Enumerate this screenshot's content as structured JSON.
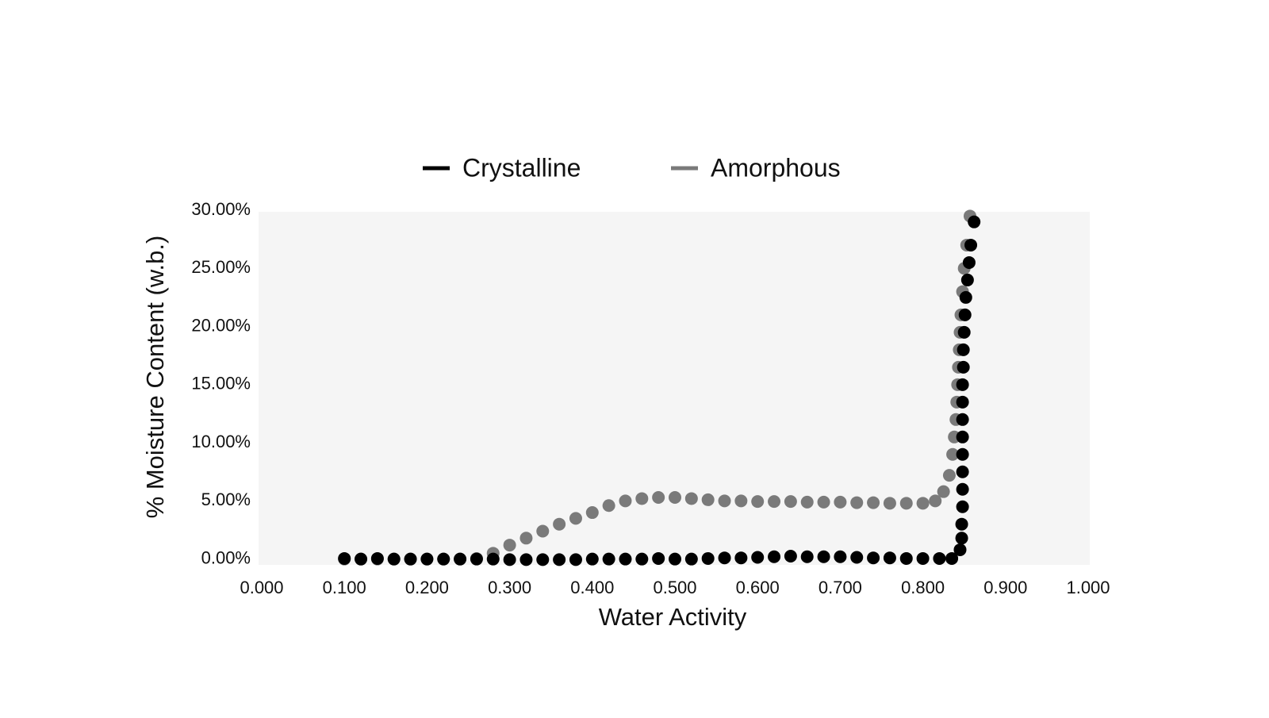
{
  "chart_data": {
    "type": "scatter",
    "xlabel": "Water Activity",
    "ylabel": "% Moisture Content (w.b.)",
    "xlim": [
      0,
      1
    ],
    "ylim": [
      -0.5,
      30
    ],
    "xticks": [
      {
        "value": 0,
        "label": "0.000"
      },
      {
        "value": 0.1,
        "label": "0.100"
      },
      {
        "value": 0.2,
        "label": "0.200"
      },
      {
        "value": 0.3,
        "label": "0.300"
      },
      {
        "value": 0.4,
        "label": "0.400"
      },
      {
        "value": 0.5,
        "label": "0.500"
      },
      {
        "value": 0.6,
        "label": "0.600"
      },
      {
        "value": 0.7,
        "label": "0.700"
      },
      {
        "value": 0.8,
        "label": "0.800"
      },
      {
        "value": 0.9,
        "label": "0.900"
      },
      {
        "value": 1,
        "label": "1.000"
      }
    ],
    "yticks": [
      {
        "value": 0,
        "label": "0.00%"
      },
      {
        "value": 5,
        "label": "5.00%"
      },
      {
        "value": 10,
        "label": "10.00%"
      },
      {
        "value": 15,
        "label": "15.00%"
      },
      {
        "value": 20,
        "label": "20.00%"
      },
      {
        "value": 25,
        "label": "25.00%"
      },
      {
        "value": 30,
        "label": "30.00%"
      }
    ],
    "legend": "top",
    "series": [
      {
        "name": "Crystalline",
        "color": "#000000",
        "x": [
          0.1,
          0.12,
          0.14,
          0.16,
          0.18,
          0.2,
          0.22,
          0.24,
          0.26,
          0.28,
          0.3,
          0.32,
          0.34,
          0.36,
          0.38,
          0.4,
          0.42,
          0.44,
          0.46,
          0.48,
          0.5,
          0.52,
          0.54,
          0.56,
          0.58,
          0.6,
          0.62,
          0.64,
          0.66,
          0.68,
          0.7,
          0.72,
          0.74,
          0.76,
          0.78,
          0.8,
          0.82,
          0.835,
          0.845,
          0.847,
          0.847,
          0.848,
          0.848,
          0.848,
          0.848,
          0.848,
          0.848,
          0.848,
          0.848,
          0.849,
          0.849,
          0.85,
          0.851,
          0.852,
          0.854,
          0.856,
          0.858,
          0.862
        ],
        "values": [
          0.05,
          0,
          0.05,
          0,
          0,
          0,
          0,
          0,
          0,
          0,
          -0.05,
          -0.05,
          -0.05,
          -0.05,
          -0.05,
          0,
          0,
          0,
          0,
          0.05,
          0,
          0,
          0.05,
          0.1,
          0.1,
          0.15,
          0.2,
          0.25,
          0.2,
          0.2,
          0.2,
          0.15,
          0.1,
          0.1,
          0.05,
          0.05,
          0.05,
          0.05,
          0.8,
          1.8,
          3,
          4.5,
          6,
          7.5,
          9,
          10.5,
          12,
          13.5,
          15,
          16.5,
          18,
          19.5,
          21,
          22.5,
          24,
          25.5,
          27,
          29
        ]
      },
      {
        "name": "Amorphous",
        "color": "#7a7a7a",
        "x": [
          0.1,
          0.12,
          0.14,
          0.16,
          0.18,
          0.2,
          0.22,
          0.24,
          0.26,
          0.28,
          0.3,
          0.32,
          0.34,
          0.36,
          0.38,
          0.4,
          0.42,
          0.44,
          0.46,
          0.48,
          0.5,
          0.52,
          0.54,
          0.56,
          0.58,
          0.6,
          0.62,
          0.64,
          0.66,
          0.68,
          0.7,
          0.72,
          0.74,
          0.76,
          0.78,
          0.8,
          0.815,
          0.825,
          0.832,
          0.836,
          0.838,
          0.84,
          0.841,
          0.842,
          0.843,
          0.844,
          0.845,
          0.846,
          0.848,
          0.85,
          0.853,
          0.857
        ],
        "values": [
          0,
          0,
          0,
          0,
          0,
          0,
          0,
          0,
          0.05,
          0.5,
          1.2,
          1.8,
          2.4,
          3.0,
          3.5,
          4.0,
          4.6,
          5.0,
          5.2,
          5.3,
          5.3,
          5.2,
          5.1,
          5.0,
          5.0,
          4.95,
          4.95,
          4.95,
          4.9,
          4.9,
          4.9,
          4.85,
          4.85,
          4.8,
          4.8,
          4.8,
          5.0,
          5.8,
          7.2,
          9,
          10.5,
          12,
          13.5,
          15,
          16.5,
          18,
          19.5,
          21,
          23,
          25,
          27,
          29.5
        ]
      }
    ]
  }
}
